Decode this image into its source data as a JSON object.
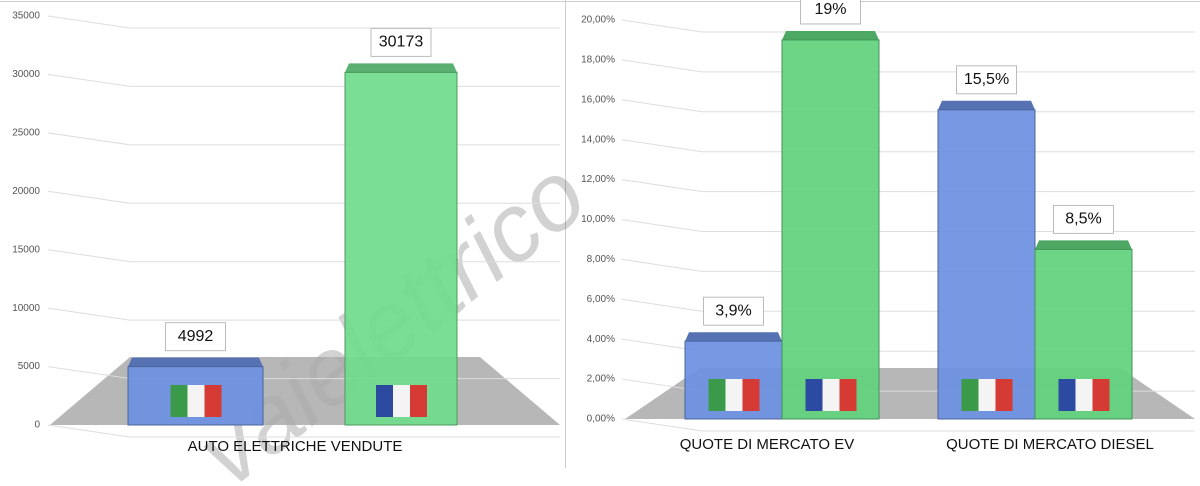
{
  "watermark": "vaielettrico",
  "chart_data": [
    {
      "type": "bar3d",
      "categories": [
        "AUTO ELETTRICHE VENDUTE"
      ],
      "series": [
        {
          "color": "#6b8fe0",
          "values": [
            4992
          ]
        },
        {
          "color": "#6fdc8c",
          "values": [
            30173
          ]
        }
      ],
      "ylim": [
        0,
        35000
      ],
      "yticks": [
        0,
        5000,
        10000,
        15000,
        20000,
        25000,
        30000,
        35000
      ],
      "grid": true
    },
    {
      "type": "bar3d",
      "categories": [
        "QUOTE DI MERCATO EV",
        "QUOTE DI MERCATO DIESEL"
      ],
      "series": [
        {
          "color": "#6b8fe0",
          "values": [
            3.9,
            15.5
          ],
          "value_labels": [
            "3,9%",
            "15,5%"
          ]
        },
        {
          "color": "#5fd27c",
          "values": [
            19,
            8.5
          ],
          "value_labels": [
            "19%",
            "8,5%"
          ]
        }
      ],
      "ylim": [
        0,
        20
      ],
      "yticks": [
        {
          "value": 0,
          "label": "0,00%"
        },
        {
          "value": 2,
          "label": "2,00%"
        },
        {
          "value": 4,
          "label": "4,00%"
        },
        {
          "value": 6,
          "label": "6,00%"
        },
        {
          "value": 8,
          "label": "8,00%"
        },
        {
          "value": 10,
          "label": "10,00%"
        },
        {
          "value": 12,
          "label": "12,00%"
        },
        {
          "value": 14,
          "label": "14,00%"
        },
        {
          "value": 16,
          "label": "16,00%"
        },
        {
          "value": 18,
          "label": "18,00%"
        },
        {
          "value": 20,
          "label": "20,00%"
        }
      ],
      "grid": true
    }
  ]
}
